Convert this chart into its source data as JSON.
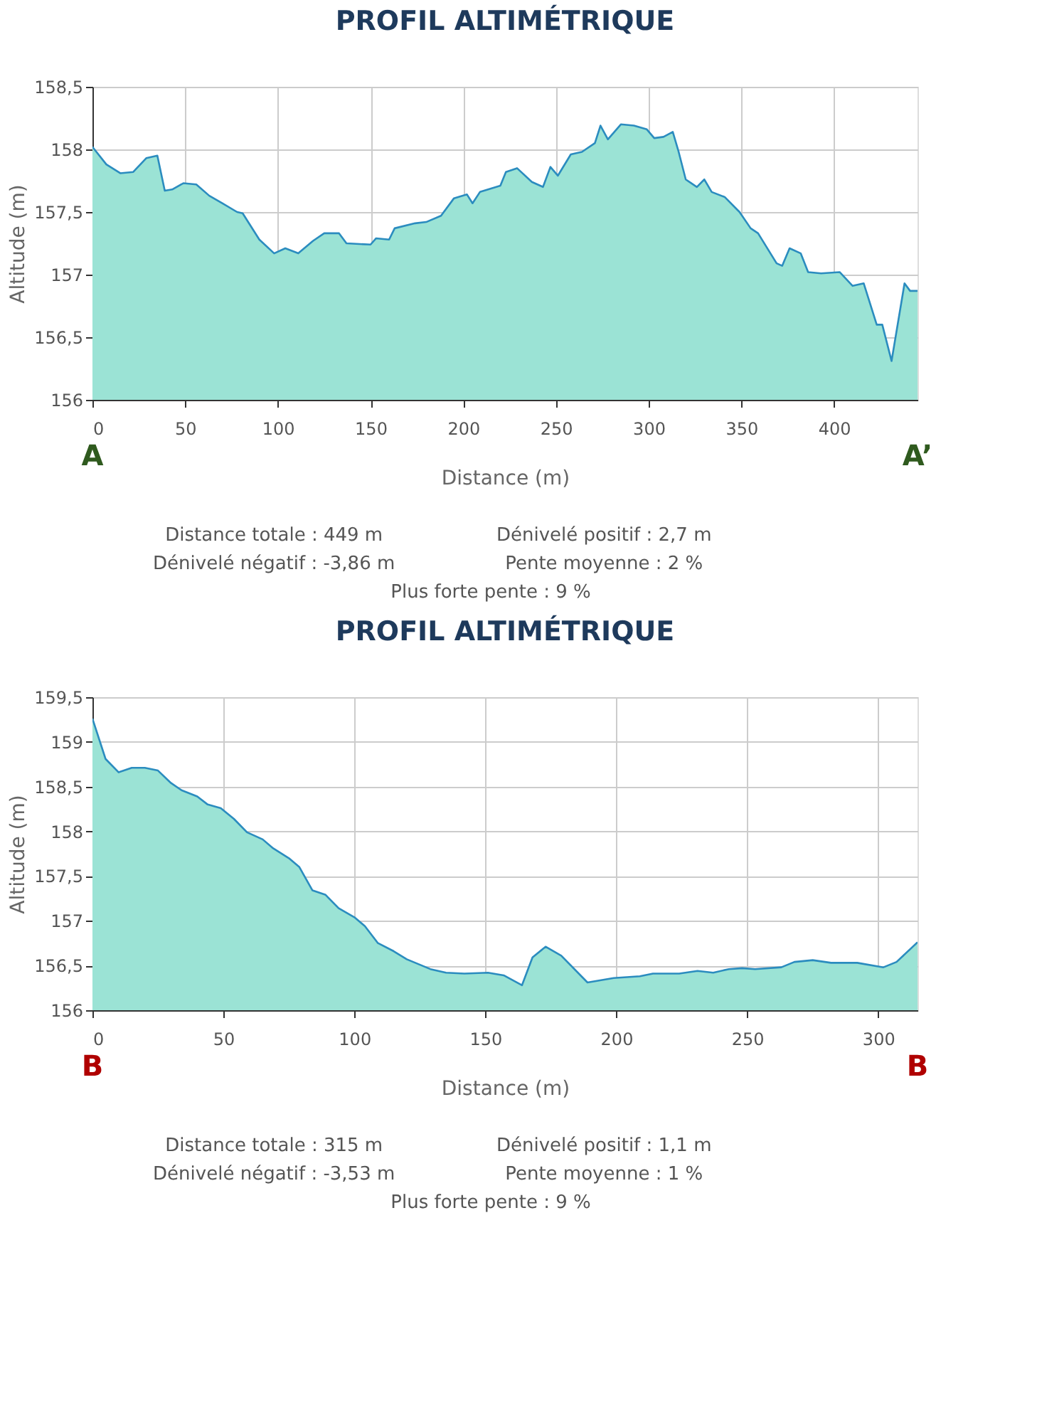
{
  "chart_data": [
    {
      "type": "area",
      "title": "PROFIL ALTIMÉTRIQUE",
      "xlabel": "Distance (m)",
      "ylabel": "Altitude (m)",
      "series": [
        {
          "color": "#9be3d5",
          "x": [
            0,
            7.5,
            15,
            22,
            29,
            35,
            39,
            43,
            49,
            56,
            63,
            70,
            78,
            81,
            90,
            98,
            104,
            111,
            119,
            125,
            133,
            137,
            150,
            153,
            160,
            163,
            174,
            180,
            188,
            195,
            202,
            205,
            209,
            220,
            223,
            229,
            237,
            243,
            247,
            251,
            258,
            264,
            271,
            274,
            278,
            285,
            292,
            299,
            303,
            308,
            313,
            316,
            320,
            326,
            330,
            334,
            341,
            349,
            355,
            359,
            369,
            372,
            376,
            382,
            386,
            393,
            403,
            410,
            416,
            423,
            426,
            431,
            438,
            441,
            445
          ],
          "values": [
            158.02,
            157.88,
            157.81,
            157.82,
            157.93,
            157.95,
            157.67,
            157.68,
            157.73,
            157.72,
            157.63,
            157.57,
            157.5,
            157.49,
            157.28,
            157.17,
            157.21,
            157.17,
            157.27,
            157.33,
            157.33,
            157.25,
            157.24,
            157.29,
            157.28,
            157.37,
            157.41,
            157.42,
            157.47,
            157.61,
            157.64,
            157.57,
            157.66,
            157.71,
            157.82,
            157.85,
            157.74,
            157.7,
            157.86,
            157.79,
            157.96,
            157.98,
            158.05,
            158.19,
            158.08,
            158.2,
            158.19,
            158.16,
            158.09,
            158.1,
            158.14,
            157.99,
            157.76,
            157.7,
            157.76,
            157.66,
            157.62,
            157.5,
            157.37,
            157.33,
            157.09,
            157.07,
            157.21,
            157.17,
            157.02,
            157.01,
            157.02,
            156.91,
            156.93,
            156.6,
            156.6,
            156.31,
            156.93,
            156.87,
            156.87
          ]
        }
      ],
      "xlim": [
        0,
        445
      ],
      "xticks": [
        0,
        50,
        100,
        150,
        200,
        250,
        300,
        350,
        400
      ],
      "ylim": [
        156,
        158.5
      ],
      "yticks": [
        156,
        {
          "value": 156.5,
          "label": "156,5"
        },
        157,
        {
          "value": 157.5,
          "label": "157,5"
        },
        158,
        {
          "value": 158.5,
          "label": "158,5"
        }
      ],
      "grid": true,
      "annotations": [
        "A",
        "A’",
        "Distance totale : 449 m",
        "Dénivelé positif : 2,7 m",
        "Dénivelé négatif : -3,86 m",
        "Pente moyenne : 2 %",
        "Plus forte pente : 9 %"
      ]
    },
    {
      "type": "area",
      "title": "PROFIL ALTIMÉTRIQUE",
      "xlabel": "Distance (m)",
      "ylabel": "Altitude (m)",
      "series": [
        {
          "color": "#9be3d5",
          "x": [
            0,
            5,
            10,
            15,
            20,
            25,
            30,
            34,
            40,
            44,
            49,
            54,
            59,
            65,
            69,
            75,
            79,
            84,
            89,
            94,
            100,
            104,
            109,
            115,
            120,
            129,
            135,
            142,
            151,
            157,
            164,
            168,
            173,
            179,
            189,
            199,
            209,
            214,
            224,
            231,
            237,
            243,
            248,
            253,
            263,
            268,
            275,
            282,
            292,
            302,
            307,
            315
          ],
          "values": [
            159.26,
            158.81,
            158.66,
            158.71,
            158.71,
            158.68,
            158.54,
            158.46,
            158.39,
            158.3,
            158.26,
            158.14,
            157.99,
            157.91,
            157.81,
            157.7,
            157.6,
            157.34,
            157.29,
            157.14,
            157.04,
            156.94,
            156.75,
            156.66,
            156.57,
            156.46,
            156.42,
            156.41,
            156.42,
            156.39,
            156.28,
            156.59,
            156.71,
            156.61,
            156.31,
            156.36,
            156.38,
            156.41,
            156.41,
            156.44,
            156.42,
            156.46,
            156.47,
            156.46,
            156.48,
            156.54,
            156.56,
            156.53,
            156.53,
            156.48,
            156.54,
            156.76
          ]
        }
      ],
      "xlim": [
        0,
        315
      ],
      "xticks": [
        0,
        50,
        100,
        150,
        200,
        250,
        300
      ],
      "ylim": [
        156,
        159.5
      ],
      "yticks": [
        156,
        {
          "value": 156.5,
          "label": "156,5"
        },
        157,
        {
          "value": 157.5,
          "label": "157,5"
        },
        158,
        {
          "value": 158.5,
          "label": "158,5"
        },
        159,
        {
          "value": 159.5,
          "label": "159,5"
        }
      ],
      "grid": true,
      "annotations": [
        "B",
        "B",
        "Distance totale : 315 m",
        "Dénivelé positif : 1,1 m",
        "Dénivelé négatif : -3,53 m",
        "Pente moyenne : 1 %",
        "Plus forte pente : 9 %"
      ]
    }
  ]
}
